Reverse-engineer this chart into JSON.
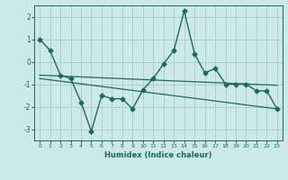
{
  "xlabel": "Humidex (Indice chaleur)",
  "background_color": "#cce8e8",
  "grid_color": "#aacccc",
  "line_color": "#1a6b5a",
  "xlim": [
    -0.5,
    23.5
  ],
  "ylim": [
    -3.5,
    2.5
  ],
  "yticks": [
    -3,
    -2,
    -1,
    0,
    1,
    2
  ],
  "xticks": [
    0,
    1,
    2,
    3,
    4,
    5,
    6,
    7,
    8,
    9,
    10,
    11,
    12,
    13,
    14,
    15,
    16,
    17,
    18,
    19,
    20,
    21,
    22,
    23
  ],
  "line1_x": [
    0,
    1,
    2,
    3,
    4,
    5,
    6,
    7,
    8,
    9,
    10,
    11,
    12,
    13,
    14,
    15,
    16,
    17,
    18,
    19,
    20,
    21,
    22,
    23
  ],
  "line1_y": [
    1.0,
    0.5,
    -0.6,
    -0.75,
    -1.8,
    -3.1,
    -1.5,
    -1.65,
    -1.65,
    -2.1,
    -1.25,
    -0.75,
    -0.1,
    0.5,
    2.25,
    0.35,
    -0.5,
    -0.3,
    -1.0,
    -1.0,
    -1.0,
    -1.3,
    -1.3,
    -2.1
  ],
  "line2_x": [
    0,
    23
  ],
  "line2_y": [
    -0.6,
    -1.05
  ],
  "line3_x": [
    0,
    23
  ],
  "line3_y": [
    -0.75,
    -2.1
  ]
}
